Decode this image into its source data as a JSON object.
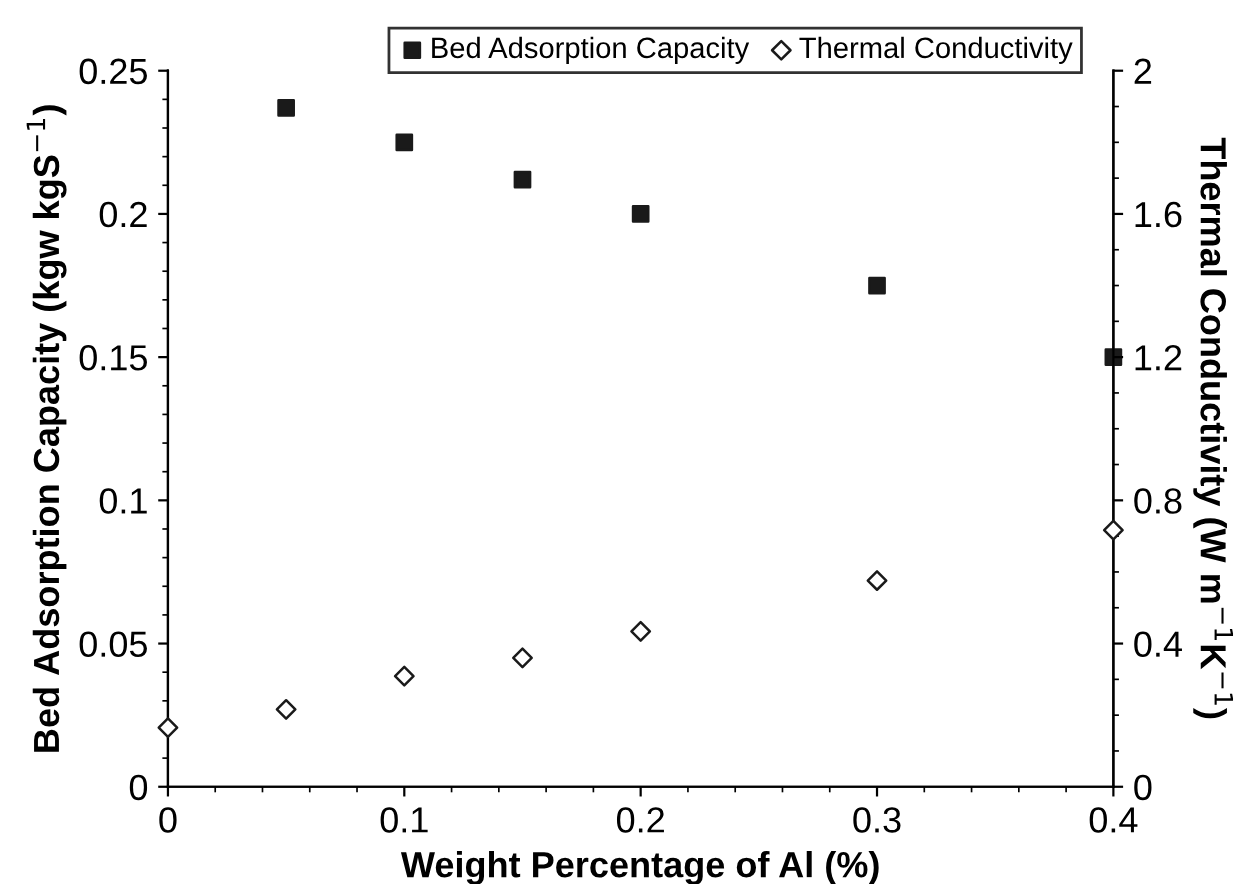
{
  "chart_data": {
    "type": "scatter",
    "xlabel": "Weight Percentage of Al (%)",
    "ylabel": "Bed Adsorption Capacity (kgw kgS$^{−1}$)",
    "y2label": "Thermal Conductivity (W m$^{−1}$K$^{−1}$)",
    "x": [
      0,
      0.05,
      0.1,
      0.15,
      0.2,
      0.3,
      0.4
    ],
    "series": [
      {
        "name": "Bed Adsorption Capacity",
        "color": "#1a1a1a",
        "marker": "square",
        "values": [
          null,
          0.237,
          0.225,
          0.212,
          0.2,
          0.175,
          0.15
        ]
      },
      {
        "name": "Thermal Conductivity",
        "color": "#1a1a1a",
        "marker": "diamond",
        "axis": "y2",
        "values": [
          0.165,
          0.216,
          0.309,
          0.36,
          0.434,
          0.576,
          0.717
        ]
      }
    ],
    "xlim": [
      0,
      0.4
    ],
    "xticks": [
      0,
      0.1,
      0.2,
      0.3,
      0.4
    ],
    "ylim": [
      0,
      0.25
    ],
    "yticks": [
      0,
      0.05,
      0.1,
      0.15,
      0.2,
      0.25
    ],
    "y2lim": [
      0,
      2
    ],
    "y2ticks": [
      0,
      0.4,
      0.8,
      1.2,
      1.6,
      2
    ],
    "grid": false,
    "legend": "top"
  }
}
